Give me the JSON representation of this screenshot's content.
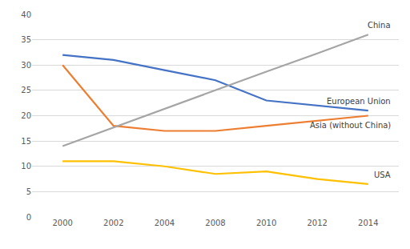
{
  "chart_data": {
    "type": "line",
    "categories": [
      "2000",
      "2002",
      "2004",
      "2008",
      "2010",
      "2012",
      "2014"
    ],
    "series": [
      {
        "name": "European Union",
        "color": "#4472c4",
        "values": [
          32,
          31,
          29,
          27,
          23,
          22,
          21
        ]
      },
      {
        "name": "Asia (without China)",
        "color": "#ed7d31",
        "values": [
          30,
          18,
          17,
          17,
          18,
          19,
          20
        ]
      },
      {
        "name": "USA",
        "color": "#ffc000",
        "values": [
          11,
          11,
          10,
          8.5,
          9,
          7.5,
          6.5
        ]
      },
      {
        "name": "China",
        "color": "#a5a5a5",
        "values": [
          14,
          17.7,
          21.3,
          25,
          28.7,
          32.3,
          36
        ]
      }
    ],
    "ylim": [
      0,
      40
    ],
    "yticks": [
      0,
      5,
      10,
      15,
      20,
      25,
      30,
      35,
      40
    ],
    "grid": true
  }
}
